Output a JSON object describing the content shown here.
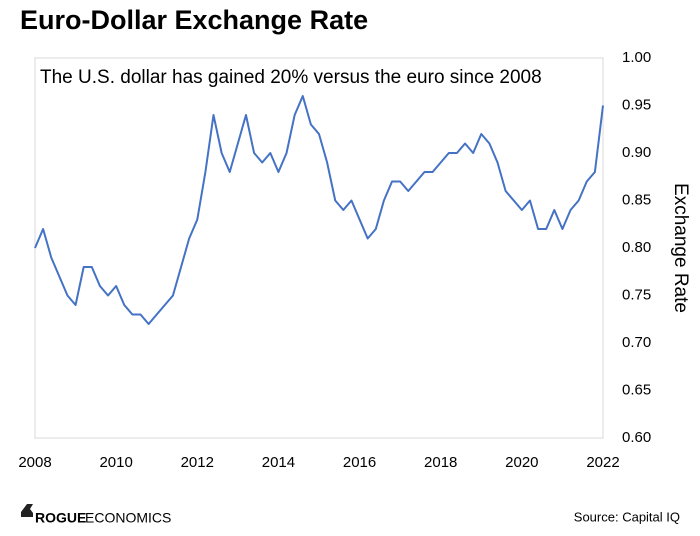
{
  "chart_data": {
    "type": "line",
    "title": "Euro-Dollar Exchange Rate",
    "annotation": "The U.S. dollar has gained 20% versus the euro since 2008",
    "y_label": "Exchange Rate",
    "source": "Source: Capital IQ",
    "logo": {
      "bold": "ROGUE",
      "regular": "ECONOMICS"
    },
    "x": [
      2008.0,
      2008.2,
      2008.4,
      2008.6,
      2008.8,
      2009.0,
      2009.2,
      2009.4,
      2009.6,
      2009.8,
      2010.0,
      2010.2,
      2010.4,
      2010.6,
      2010.8,
      2011.0,
      2011.2,
      2011.4,
      2011.6,
      2011.8,
      2012.0,
      2012.2,
      2012.4,
      2012.6,
      2012.8,
      2013.0,
      2013.2,
      2013.4,
      2013.6,
      2013.8,
      2014.0,
      2014.2,
      2014.4,
      2014.6,
      2014.8,
      2015.0,
      2015.2,
      2015.4,
      2015.6,
      2015.8,
      2016.0,
      2016.2,
      2016.4,
      2016.6,
      2016.8,
      2017.0,
      2017.2,
      2017.4,
      2017.6,
      2017.8,
      2018.0,
      2018.2,
      2018.4,
      2018.6,
      2018.8,
      2019.0,
      2019.2,
      2019.4,
      2019.6,
      2019.8,
      2020.0,
      2020.2,
      2020.4,
      2020.6,
      2020.8,
      2021.0,
      2021.2,
      2021.4,
      2021.6,
      2021.8,
      2022.0
    ],
    "series": [
      {
        "color": "#4472c4",
        "values": [
          0.8,
          0.82,
          0.79,
          0.77,
          0.75,
          0.74,
          0.78,
          0.78,
          0.76,
          0.75,
          0.76,
          0.74,
          0.73,
          0.73,
          0.72,
          0.73,
          0.74,
          0.75,
          0.78,
          0.81,
          0.83,
          0.88,
          0.94,
          0.9,
          0.88,
          0.91,
          0.94,
          0.9,
          0.89,
          0.9,
          0.88,
          0.9,
          0.94,
          0.96,
          0.93,
          0.92,
          0.89,
          0.85,
          0.84,
          0.85,
          0.83,
          0.81,
          0.82,
          0.85,
          0.87,
          0.87,
          0.86,
          0.87,
          0.88,
          0.88,
          0.89,
          0.9,
          0.9,
          0.91,
          0.9,
          0.92,
          0.91,
          0.89,
          0.86,
          0.85,
          0.84,
          0.85,
          0.82,
          0.82,
          0.84,
          0.82,
          0.84,
          0.85,
          0.87,
          0.88,
          0.95
        ]
      }
    ],
    "xlim": [
      2008,
      2022
    ],
    "xticks": [
      2008,
      2010,
      2012,
      2014,
      2016,
      2018,
      2020,
      2022
    ],
    "ylim": [
      0.6,
      1.0
    ],
    "yticks": [
      {
        "value": 0.6,
        "label": "0.60"
      },
      0.65,
      {
        "value": 0.7,
        "label": "0.70"
      },
      0.75,
      {
        "value": 0.8,
        "label": "0.80"
      },
      0.85,
      {
        "value": 0.9,
        "label": "0.90"
      },
      0.95,
      {
        "value": 1.0,
        "label": "1.00"
      }
    ],
    "grid": false
  }
}
